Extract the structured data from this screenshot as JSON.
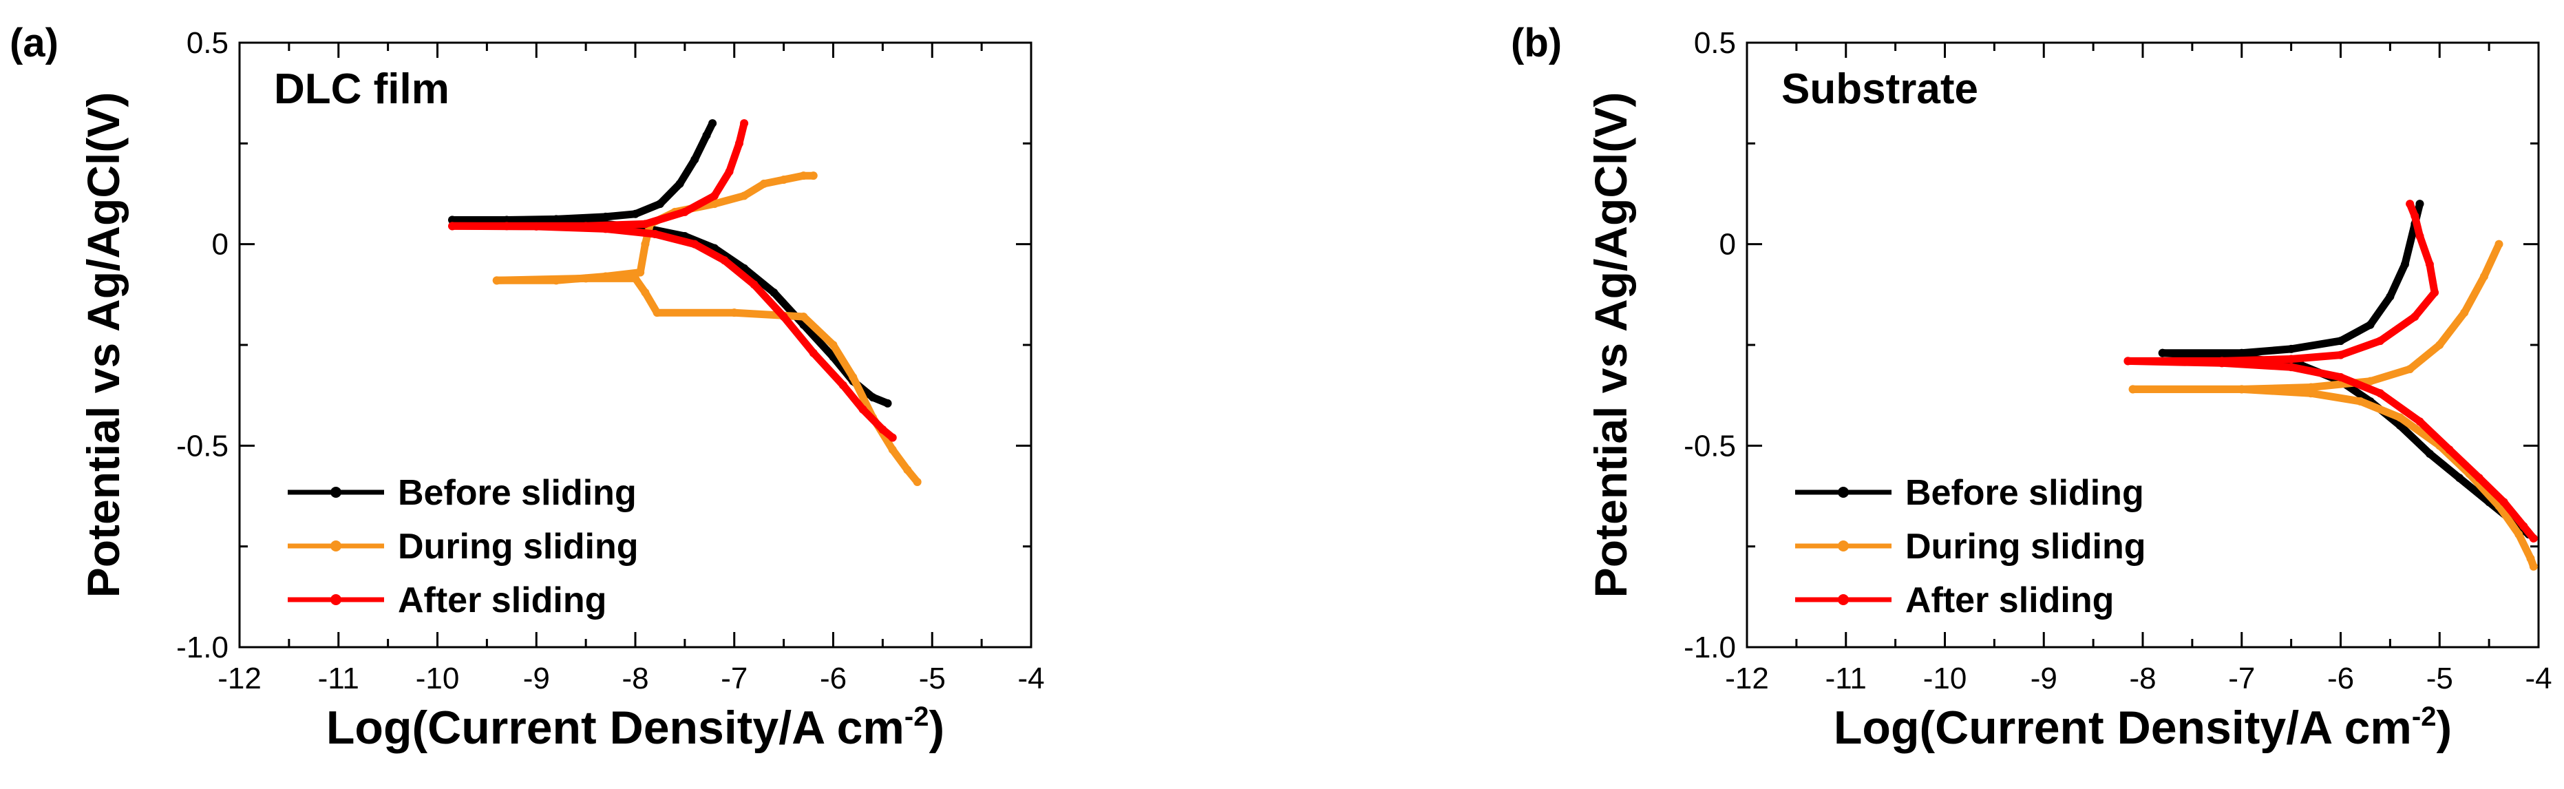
{
  "chart_data": [
    {
      "type": "line",
      "panel_label": "(a)",
      "title": "DLC film",
      "xlabel": "Log(Current Density/A cm",
      "xlabel_sup": "-2",
      "xlabel_close": ")",
      "ylabel": "Potential vs Ag/AgCl(V)",
      "xlim": [
        -12,
        -4
      ],
      "ylim": [
        -1.0,
        0.5
      ],
      "x_ticks": [
        -12,
        -11,
        -10,
        -9,
        -8,
        -7,
        -6,
        -5,
        -4
      ],
      "x_tick_labels": [
        "-12",
        "-11",
        "-10",
        "-9",
        "-8",
        "-7",
        "-6",
        "-5",
        "-4"
      ],
      "y_ticks": [
        0.5,
        0,
        -0.5,
        -1.0
      ],
      "y_tick_labels": [
        "0.5",
        "0",
        "-0.5",
        "-1.0"
      ],
      "legend_position": "bottom-left",
      "series": [
        {
          "name": "Before sliding",
          "color": "#000000",
          "anodic": [
            [
              -9.85,
              0.06
            ],
            [
              -9.3,
              0.06
            ],
            [
              -8.8,
              0.062
            ],
            [
              -8.3,
              0.068
            ],
            [
              -8.0,
              0.075
            ],
            [
              -7.75,
              0.1
            ],
            [
              -7.55,
              0.15
            ],
            [
              -7.4,
              0.21
            ],
            [
              -7.28,
              0.27
            ],
            [
              -7.22,
              0.3
            ]
          ],
          "cathodic": [
            [
              -9.85,
              0.06
            ],
            [
              -9.0,
              0.058
            ],
            [
              -8.3,
              0.05
            ],
            [
              -7.9,
              0.04
            ],
            [
              -7.5,
              0.02
            ],
            [
              -7.2,
              -0.01
            ],
            [
              -6.9,
              -0.06
            ],
            [
              -6.6,
              -0.12
            ],
            [
              -6.3,
              -0.2
            ],
            [
              -6.0,
              -0.28
            ],
            [
              -5.8,
              -0.34
            ],
            [
              -5.6,
              -0.38
            ],
            [
              -5.45,
              -0.395
            ]
          ]
        },
        {
          "name": "During sliding",
          "color": "#F7941D",
          "anodic": [
            [
              -9.4,
              -0.09
            ],
            [
              -8.8,
              -0.09
            ],
            [
              -8.3,
              -0.08
            ],
            [
              -7.95,
              -0.07
            ],
            [
              -7.9,
              0.0
            ],
            [
              -7.85,
              0.05
            ],
            [
              -7.6,
              0.08
            ],
            [
              -7.2,
              0.1
            ],
            [
              -6.9,
              0.12
            ],
            [
              -6.7,
              0.15
            ],
            [
              -6.5,
              0.16
            ],
            [
              -6.3,
              0.17
            ],
            [
              -6.2,
              0.17
            ]
          ],
          "cathodic": [
            [
              -9.4,
              -0.09
            ],
            [
              -8.5,
              -0.085
            ],
            [
              -8.0,
              -0.085
            ],
            [
              -7.9,
              -0.12
            ],
            [
              -7.78,
              -0.17
            ],
            [
              -7.0,
              -0.17
            ],
            [
              -6.3,
              -0.18
            ],
            [
              -6.0,
              -0.25
            ],
            [
              -5.8,
              -0.33
            ],
            [
              -5.6,
              -0.43
            ],
            [
              -5.4,
              -0.51
            ],
            [
              -5.25,
              -0.56
            ],
            [
              -5.15,
              -0.59
            ]
          ]
        },
        {
          "name": "After sliding",
          "color": "#FF0000",
          "anodic": [
            [
              -9.85,
              0.045
            ],
            [
              -9.3,
              0.045
            ],
            [
              -8.5,
              0.045
            ],
            [
              -7.9,
              0.05
            ],
            [
              -7.5,
              0.08
            ],
            [
              -7.2,
              0.12
            ],
            [
              -7.05,
              0.18
            ],
            [
              -6.95,
              0.25
            ],
            [
              -6.9,
              0.3
            ]
          ],
          "cathodic": [
            [
              -9.85,
              0.045
            ],
            [
              -9.0,
              0.044
            ],
            [
              -8.3,
              0.038
            ],
            [
              -7.8,
              0.025
            ],
            [
              -7.4,
              0.0
            ],
            [
              -7.1,
              -0.04
            ],
            [
              -6.8,
              -0.1
            ],
            [
              -6.5,
              -0.18
            ],
            [
              -6.2,
              -0.27
            ],
            [
              -5.9,
              -0.35
            ],
            [
              -5.7,
              -0.41
            ],
            [
              -5.5,
              -0.46
            ],
            [
              -5.4,
              -0.48
            ]
          ]
        }
      ]
    },
    {
      "type": "line",
      "panel_label": "(b)",
      "title": "Substrate",
      "xlabel": "Log(Current Density/A cm",
      "xlabel_sup": "-2",
      "xlabel_close": ")",
      "ylabel": "Potential vs Ag/AgCl(V)",
      "xlim": [
        -12,
        -4
      ],
      "ylim": [
        -1.0,
        0.5
      ],
      "x_ticks": [
        -12,
        -11,
        -10,
        -9,
        -8,
        -7,
        -6,
        -5,
        -4
      ],
      "x_tick_labels": [
        "-12",
        "-11",
        "-10",
        "-9",
        "-8",
        "-7",
        "-6",
        "-5",
        "-4"
      ],
      "y_ticks": [
        0.5,
        0,
        -0.5,
        -1.0
      ],
      "y_tick_labels": [
        "0.5",
        "0",
        "-0.5",
        "-1.0"
      ],
      "legend_position": "bottom-left",
      "series": [
        {
          "name": "Before sliding",
          "color": "#000000",
          "anodic": [
            [
              -7.8,
              -0.27
            ],
            [
              -7.0,
              -0.27
            ],
            [
              -6.5,
              -0.26
            ],
            [
              -6.0,
              -0.24
            ],
            [
              -5.7,
              -0.2
            ],
            [
              -5.5,
              -0.13
            ],
            [
              -5.35,
              -0.05
            ],
            [
              -5.25,
              0.05
            ],
            [
              -5.2,
              0.1
            ]
          ],
          "cathodic": [
            [
              -7.8,
              -0.27
            ],
            [
              -7.0,
              -0.28
            ],
            [
              -6.4,
              -0.3
            ],
            [
              -6.0,
              -0.34
            ],
            [
              -5.7,
              -0.39
            ],
            [
              -5.4,
              -0.45
            ],
            [
              -5.1,
              -0.52
            ],
            [
              -4.8,
              -0.58
            ],
            [
              -4.5,
              -0.64
            ],
            [
              -4.25,
              -0.69
            ],
            [
              -4.1,
              -0.72
            ]
          ]
        },
        {
          "name": "During sliding",
          "color": "#F7941D",
          "anodic": [
            [
              -8.1,
              -0.36
            ],
            [
              -7.0,
              -0.36
            ],
            [
              -6.3,
              -0.355
            ],
            [
              -5.7,
              -0.34
            ],
            [
              -5.3,
              -0.31
            ],
            [
              -5.0,
              -0.25
            ],
            [
              -4.75,
              -0.17
            ],
            [
              -4.55,
              -0.08
            ],
            [
              -4.4,
              0.0
            ]
          ],
          "cathodic": [
            [
              -8.1,
              -0.36
            ],
            [
              -7.0,
              -0.36
            ],
            [
              -6.3,
              -0.37
            ],
            [
              -5.8,
              -0.39
            ],
            [
              -5.4,
              -0.43
            ],
            [
              -5.0,
              -0.5
            ],
            [
              -4.7,
              -0.57
            ],
            [
              -4.4,
              -0.65
            ],
            [
              -4.2,
              -0.72
            ],
            [
              -4.08,
              -0.78
            ],
            [
              -4.05,
              -0.8
            ]
          ]
        },
        {
          "name": "After sliding",
          "color": "#FF0000",
          "anodic": [
            [
              -8.15,
              -0.29
            ],
            [
              -7.2,
              -0.29
            ],
            [
              -6.5,
              -0.285
            ],
            [
              -6.0,
              -0.275
            ],
            [
              -5.6,
              -0.24
            ],
            [
              -5.25,
              -0.18
            ],
            [
              -5.05,
              -0.12
            ],
            [
              -5.1,
              -0.05
            ],
            [
              -5.2,
              0.02
            ],
            [
              -5.25,
              0.07
            ],
            [
              -5.3,
              0.1
            ]
          ],
          "cathodic": [
            [
              -8.15,
              -0.29
            ],
            [
              -7.2,
              -0.295
            ],
            [
              -6.5,
              -0.305
            ],
            [
              -6.0,
              -0.33
            ],
            [
              -5.6,
              -0.37
            ],
            [
              -5.2,
              -0.44
            ],
            [
              -4.9,
              -0.51
            ],
            [
              -4.6,
              -0.58
            ],
            [
              -4.35,
              -0.64
            ],
            [
              -4.15,
              -0.7
            ],
            [
              -4.05,
              -0.73
            ]
          ]
        }
      ]
    }
  ]
}
